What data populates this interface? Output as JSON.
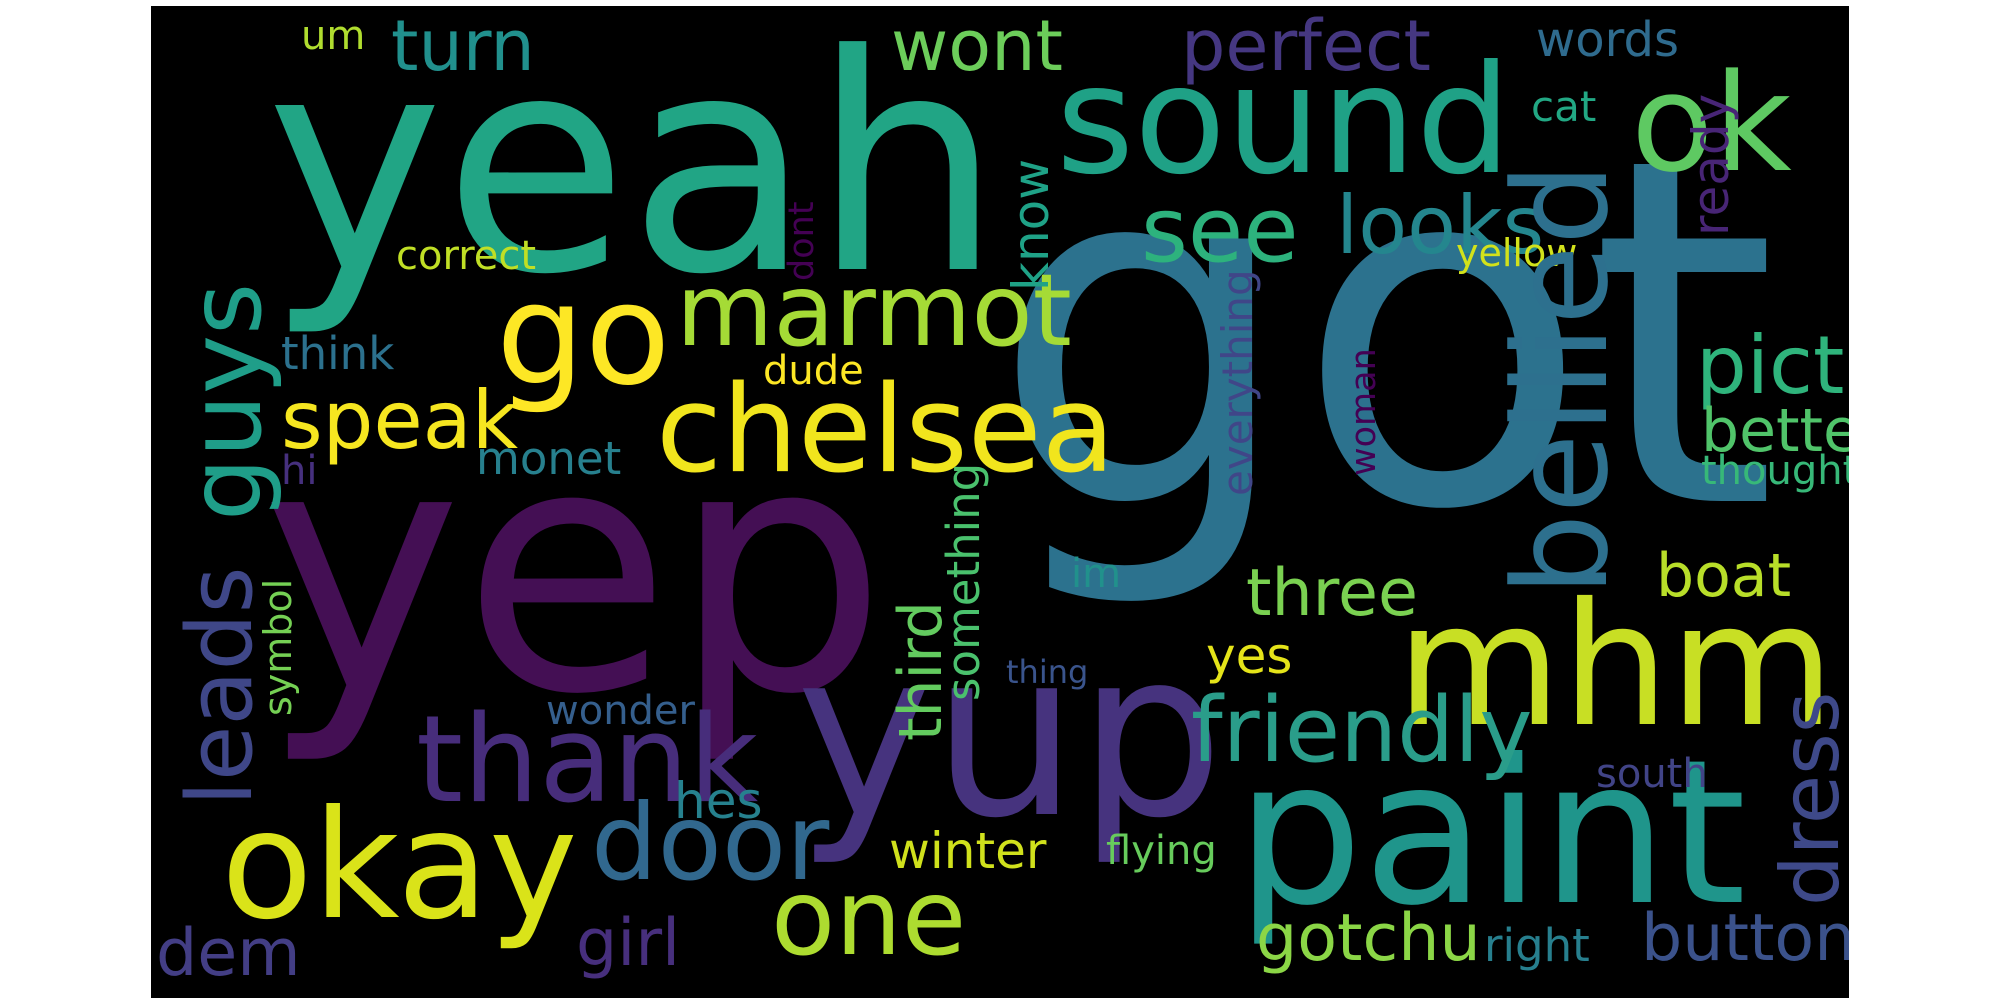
{
  "words": [
    {
      "text": "got",
      "color": "#2c728e"
    },
    {
      "text": "yeah",
      "color": "#21a585"
    },
    {
      "text": "yep",
      "color": "#440f54"
    },
    {
      "text": "mhm",
      "color": "#c8df24"
    },
    {
      "text": "yup",
      "color": "#46337e"
    },
    {
      "text": "paint",
      "color": "#1f958b"
    },
    {
      "text": "sound",
      "color": "#1fa186"
    },
    {
      "text": "okay",
      "color": "#dae319"
    },
    {
      "text": "ok",
      "color": "#5ec962"
    },
    {
      "text": "go",
      "color": "#fde725"
    },
    {
      "text": "chelsea",
      "color": "#f1e51d"
    },
    {
      "text": "thank",
      "color": "#472d7b"
    },
    {
      "text": "door",
      "color": "#31688e"
    },
    {
      "text": "one",
      "color": "#addc30"
    },
    {
      "text": "marmot",
      "color": "#a5db36"
    },
    {
      "text": "see",
      "color": "#2db27d"
    },
    {
      "text": "looks",
      "color": "#24868e"
    },
    {
      "text": "speak",
      "color": "#f6e620"
    },
    {
      "text": "turn",
      "color": "#21908d"
    },
    {
      "text": "perfect",
      "color": "#453781"
    },
    {
      "text": "wont",
      "color": "#6ccd5a"
    },
    {
      "text": "pictures",
      "color": "#2fb47c"
    },
    {
      "text": "friendly",
      "color": "#2a9d8a"
    },
    {
      "text": "three",
      "color": "#7ad151"
    },
    {
      "text": "dem",
      "color": "#433e85"
    },
    {
      "text": "girl",
      "color": "#472f7d"
    },
    {
      "text": "gotchu",
      "color": "#8bd646"
    },
    {
      "text": "button",
      "color": "#3b528b"
    },
    {
      "text": "better",
      "color": "#50c46a"
    },
    {
      "text": "boat",
      "color": "#b8de29"
    },
    {
      "text": "words",
      "color": "#2f6b8e"
    },
    {
      "text": "think",
      "color": "#2c718e"
    },
    {
      "text": "monet",
      "color": "#27808e"
    },
    {
      "text": "cat",
      "color": "#22a884"
    },
    {
      "text": "yes",
      "color": "#e5e419"
    },
    {
      "text": "thought",
      "color": "#37b878"
    },
    {
      "text": "um",
      "color": "#b0dd2f"
    },
    {
      "text": "correct",
      "color": "#c0df25"
    },
    {
      "text": "dude",
      "color": "#fde725"
    },
    {
      "text": "hi",
      "color": "#46307e"
    },
    {
      "text": "hes",
      "color": "#26818e"
    },
    {
      "text": "winter",
      "color": "#d0e11c"
    },
    {
      "text": "wonder",
      "color": "#355f8d"
    },
    {
      "text": "flying",
      "color": "#67cc5c"
    },
    {
      "text": "south",
      "color": "#414487"
    },
    {
      "text": "right",
      "color": "#277f8e"
    },
    {
      "text": "thing",
      "color": "#3a548c"
    },
    {
      "text": "yellow",
      "color": "#d2e21b"
    },
    {
      "text": "im",
      "color": "#21918c"
    },
    {
      "text": "guys",
      "color": "#1f9e89"
    },
    {
      "text": "leads",
      "color": "#3f4788"
    },
    {
      "text": "bellied",
      "color": "#2d708e"
    },
    {
      "text": "dress",
      "color": "#3e4989"
    },
    {
      "text": "third",
      "color": "#63cb5f"
    },
    {
      "text": "know",
      "color": "#1fa287"
    },
    {
      "text": "ready",
      "color": "#482576"
    },
    {
      "text": "something",
      "color": "#4ac16d"
    },
    {
      "text": "symbol",
      "color": "#75d054"
    },
    {
      "text": "everything",
      "color": "#404688"
    },
    {
      "text": "woman",
      "color": "#440154"
    },
    {
      "text": "dont",
      "color": "#440154"
    }
  ]
}
